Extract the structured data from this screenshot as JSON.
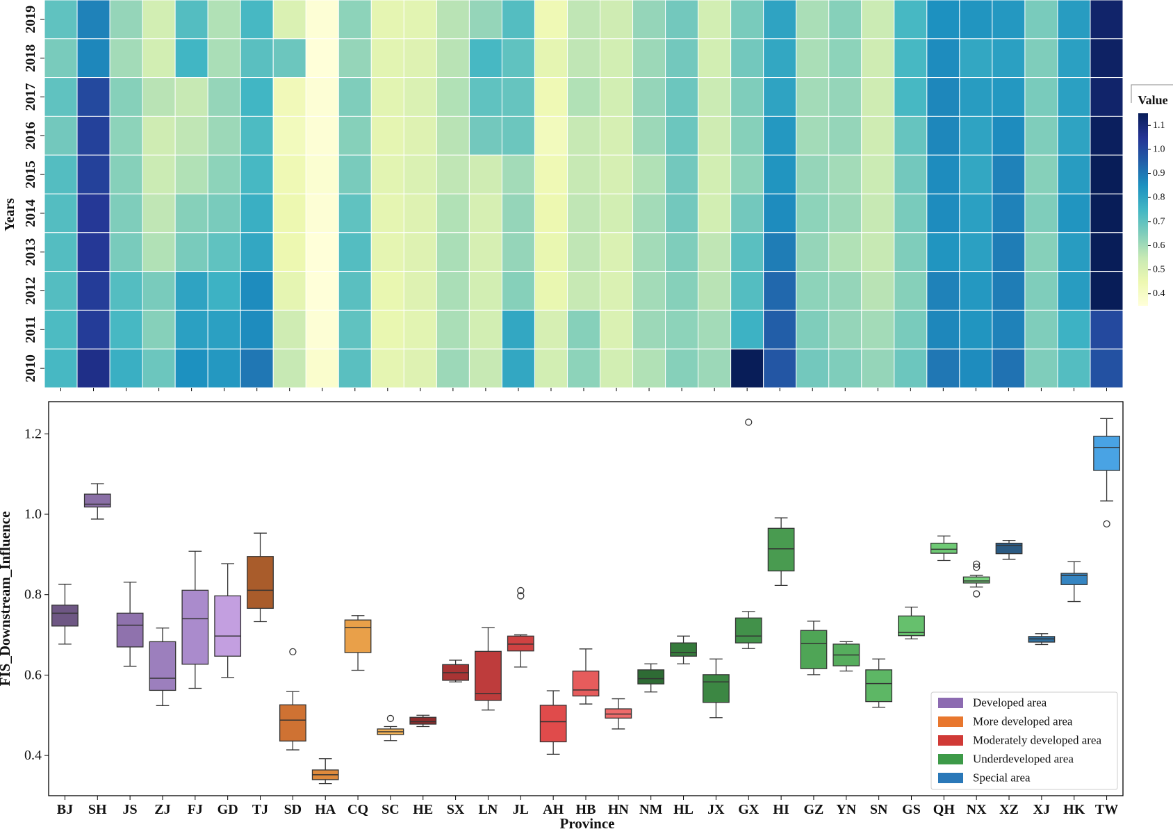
{
  "chart_data": [
    {
      "type": "heatmap",
      "title": "",
      "xlabel": "",
      "ylabel": "Years",
      "x_categories": [
        "BJ",
        "SH",
        "JS",
        "ZJ",
        "FJ",
        "GD",
        "TJ",
        "SD",
        "HA",
        "CQ",
        "SC",
        "HE",
        "SX",
        "LN",
        "JL",
        "AH",
        "HB",
        "HN",
        "NM",
        "HL",
        "JX",
        "GX",
        "HI",
        "GZ",
        "YN",
        "SN",
        "GS",
        "QH",
        "NX",
        "XZ",
        "XJ",
        "HK",
        "TW"
      ],
      "y_categories": [
        "2019",
        "2018",
        "2017",
        "2016",
        "2015",
        "2014",
        "2013",
        "2012",
        "2011",
        "2010"
      ],
      "colorbar": {
        "title": "Value",
        "ticks": [
          "0.4",
          "0.5",
          "0.6",
          "0.7",
          "0.8",
          "0.9",
          "1.0",
          "1.1"
        ],
        "range": [
          0.35,
          1.15
        ],
        "colors": [
          "#ffffd9",
          "#edf8b1",
          "#c7e9b4",
          "#7fcdbb",
          "#41b6c4",
          "#1d91c0",
          "#225ea8",
          "#253494",
          "#081d58"
        ]
      },
      "values": [
        [
          0.7,
          0.88,
          0.62,
          0.52,
          0.72,
          0.58,
          0.74,
          0.5,
          0.36,
          0.63,
          0.47,
          0.48,
          0.57,
          0.62,
          0.72,
          0.44,
          0.56,
          0.53,
          0.62,
          0.67,
          0.52,
          0.66,
          0.8,
          0.59,
          0.64,
          0.54,
          0.74,
          0.85,
          0.84,
          0.83,
          0.66,
          0.82,
          1.12
        ],
        [
          0.66,
          0.87,
          0.6,
          0.52,
          0.75,
          0.59,
          0.71,
          0.68,
          0.35,
          0.62,
          0.48,
          0.49,
          0.57,
          0.74,
          0.7,
          0.47,
          0.56,
          0.52,
          0.61,
          0.67,
          0.52,
          0.67,
          0.79,
          0.59,
          0.63,
          0.53,
          0.74,
          0.86,
          0.79,
          0.81,
          0.65,
          0.81,
          1.13
        ],
        [
          0.7,
          1.0,
          0.64,
          0.57,
          0.55,
          0.62,
          0.75,
          0.43,
          0.36,
          0.65,
          0.48,
          0.5,
          0.58,
          0.7,
          0.69,
          0.44,
          0.58,
          0.52,
          0.62,
          0.68,
          0.54,
          0.65,
          0.8,
          0.6,
          0.62,
          0.53,
          0.74,
          0.87,
          0.82,
          0.83,
          0.66,
          0.81,
          1.12
        ],
        [
          0.67,
          1.02,
          0.63,
          0.53,
          0.56,
          0.61,
          0.73,
          0.42,
          0.36,
          0.64,
          0.47,
          0.49,
          0.57,
          0.67,
          0.68,
          0.42,
          0.55,
          0.51,
          0.61,
          0.68,
          0.53,
          0.64,
          0.83,
          0.6,
          0.62,
          0.53,
          0.69,
          0.87,
          0.8,
          0.86,
          0.65,
          0.8,
          1.14
        ],
        [
          0.72,
          1.02,
          0.64,
          0.54,
          0.58,
          0.63,
          0.74,
          0.44,
          0.37,
          0.66,
          0.48,
          0.5,
          0.56,
          0.53,
          0.6,
          0.44,
          0.55,
          0.51,
          0.58,
          0.67,
          0.52,
          0.63,
          0.84,
          0.62,
          0.6,
          0.54,
          0.67,
          0.86,
          0.79,
          0.88,
          0.64,
          0.82,
          1.16
        ],
        [
          0.72,
          1.04,
          0.65,
          0.56,
          0.64,
          0.66,
          0.77,
          0.45,
          0.36,
          0.7,
          0.47,
          0.49,
          0.58,
          0.51,
          0.62,
          0.45,
          0.56,
          0.52,
          0.6,
          0.67,
          0.52,
          0.67,
          0.86,
          0.63,
          0.61,
          0.55,
          0.66,
          0.86,
          0.81,
          0.88,
          0.65,
          0.84,
          1.16
        ],
        [
          0.72,
          1.04,
          0.66,
          0.58,
          0.66,
          0.7,
          0.79,
          0.45,
          0.35,
          0.72,
          0.47,
          0.49,
          0.59,
          0.51,
          0.62,
          0.46,
          0.56,
          0.5,
          0.6,
          0.65,
          0.56,
          0.71,
          0.89,
          0.62,
          0.58,
          0.55,
          0.65,
          0.84,
          0.81,
          0.89,
          0.64,
          0.82,
          1.19
        ],
        [
          0.72,
          1.03,
          0.72,
          0.66,
          0.8,
          0.76,
          0.86,
          0.47,
          0.35,
          0.71,
          0.46,
          0.49,
          0.59,
          0.52,
          0.64,
          0.46,
          0.55,
          0.5,
          0.6,
          0.64,
          0.57,
          0.72,
          0.93,
          0.63,
          0.62,
          0.57,
          0.64,
          0.88,
          0.83,
          0.89,
          0.65,
          0.82,
          1.2
        ],
        [
          0.73,
          1.03,
          0.74,
          0.64,
          0.81,
          0.81,
          0.86,
          0.53,
          0.36,
          0.7,
          0.46,
          0.48,
          0.59,
          0.52,
          0.79,
          0.51,
          0.64,
          0.5,
          0.61,
          0.63,
          0.6,
          0.76,
          0.95,
          0.65,
          0.62,
          0.6,
          0.66,
          0.87,
          0.84,
          0.88,
          0.65,
          0.76,
          1.0
        ],
        [
          0.74,
          1.07,
          0.77,
          0.68,
          0.85,
          0.83,
          0.9,
          0.55,
          0.38,
          0.71,
          0.47,
          0.49,
          0.61,
          0.55,
          0.79,
          0.52,
          0.63,
          0.52,
          0.58,
          0.64,
          0.61,
          1.23,
          0.97,
          0.67,
          0.65,
          0.62,
          0.68,
          0.9,
          0.86,
          0.91,
          0.65,
          0.72,
          0.98
        ]
      ]
    },
    {
      "type": "box",
      "title": "",
      "xlabel": "Province",
      "ylabel": "FIS_Downstream_Influence",
      "ylim": [
        0.3,
        1.28
      ],
      "yticks": [
        "0.4",
        "0.6",
        "0.8",
        "1.0",
        "1.2"
      ],
      "categories": [
        "BJ",
        "SH",
        "JS",
        "ZJ",
        "FJ",
        "GD",
        "TJ",
        "SD",
        "HA",
        "CQ",
        "SC",
        "HE",
        "SX",
        "LN",
        "JL",
        "AH",
        "HB",
        "HN",
        "NM",
        "HL",
        "JX",
        "GX",
        "HI",
        "GZ",
        "YN",
        "SN",
        "GS",
        "QH",
        "NX",
        "XZ",
        "XJ",
        "HK",
        "TW"
      ],
      "legend": {
        "position": "lower-right",
        "entries": [
          {
            "label": "Developed area",
            "color": "#8c6bb1"
          },
          {
            "label": "More developed area",
            "color": "#e8772e"
          },
          {
            "label": "Moderately developed area",
            "color": "#d03a36"
          },
          {
            "label": "Underdeveloped area",
            "color": "#3d9a48"
          },
          {
            "label": "Special area",
            "color": "#2a78b8"
          }
        ]
      },
      "boxes": [
        {
          "min": 0.677,
          "q1": 0.722,
          "median": 0.754,
          "q3": 0.774,
          "max": 0.826,
          "outliers": [],
          "color": "#6e5784",
          "group": "Developed area"
        },
        {
          "min": 0.988,
          "q1": 1.018,
          "median": 1.025,
          "q3": 1.05,
          "max": 1.076,
          "outliers": [],
          "color": "#8a6fa6",
          "group": "Developed area"
        },
        {
          "min": 0.622,
          "q1": 0.67,
          "median": 0.724,
          "q3": 0.754,
          "max": 0.831,
          "outliers": [],
          "color": "#8f72ad",
          "group": "Developed area"
        },
        {
          "min": 0.524,
          "q1": 0.562,
          "median": 0.592,
          "q3": 0.683,
          "max": 0.717,
          "outliers": [],
          "color": "#9c7fbd",
          "group": "Developed area"
        },
        {
          "min": 0.567,
          "q1": 0.627,
          "median": 0.74,
          "q3": 0.811,
          "max": 0.908,
          "outliers": [],
          "color": "#aa8bcc",
          "group": "Developed area"
        },
        {
          "min": 0.594,
          "q1": 0.647,
          "median": 0.697,
          "q3": 0.797,
          "max": 0.877,
          "outliers": [],
          "color": "#c39fe0",
          "group": "Developed area"
        },
        {
          "min": 0.733,
          "q1": 0.766,
          "median": 0.811,
          "q3": 0.895,
          "max": 0.953,
          "outliers": [],
          "color": "#a95c2b",
          "group": "More developed area"
        },
        {
          "min": 0.414,
          "q1": 0.436,
          "median": 0.488,
          "q3": 0.526,
          "max": 0.559,
          "outliers": [
            0.658
          ],
          "color": "#cf7233",
          "group": "More developed area"
        },
        {
          "min": 0.33,
          "q1": 0.34,
          "median": 0.352,
          "q3": 0.364,
          "max": 0.392,
          "outliers": [],
          "color": "#de8a3c",
          "group": "More developed area"
        },
        {
          "min": 0.612,
          "q1": 0.656,
          "median": 0.718,
          "q3": 0.737,
          "max": 0.748,
          "outliers": [],
          "color": "#e9a049",
          "group": "More developed area"
        },
        {
          "min": 0.437,
          "q1": 0.452,
          "median": 0.459,
          "q3": 0.466,
          "max": 0.472,
          "outliers": [
            0.492
          ],
          "color": "#f2b257",
          "group": "More developed area"
        },
        {
          "min": 0.472,
          "q1": 0.478,
          "median": 0.484,
          "q3": 0.495,
          "max": 0.5,
          "outliers": [],
          "color": "#8e2c2c",
          "group": "Moderately developed area"
        },
        {
          "min": 0.583,
          "q1": 0.587,
          "median": 0.606,
          "q3": 0.626,
          "max": 0.637,
          "outliers": [],
          "color": "#a93434",
          "group": "Moderately developed area"
        },
        {
          "min": 0.513,
          "q1": 0.537,
          "median": 0.554,
          "q3": 0.659,
          "max": 0.718,
          "outliers": [],
          "color": "#be3c3c",
          "group": "Moderately developed area"
        },
        {
          "min": 0.62,
          "q1": 0.66,
          "median": 0.677,
          "q3": 0.697,
          "max": 0.7,
          "outliers": [
            0.797,
            0.81
          ],
          "color": "#cf4242",
          "group": "Moderately developed area"
        },
        {
          "min": 0.403,
          "q1": 0.434,
          "median": 0.484,
          "q3": 0.525,
          "max": 0.561,
          "outliers": [],
          "color": "#e04b4b",
          "group": "Moderately developed area"
        },
        {
          "min": 0.528,
          "q1": 0.548,
          "median": 0.563,
          "q3": 0.61,
          "max": 0.665,
          "outliers": [],
          "color": "#e65c5c",
          "group": "Moderately developed area"
        },
        {
          "min": 0.466,
          "q1": 0.493,
          "median": 0.503,
          "q3": 0.516,
          "max": 0.541,
          "outliers": [],
          "color": "#ee6a6a",
          "group": "Moderately developed area"
        },
        {
          "min": 0.558,
          "q1": 0.578,
          "median": 0.591,
          "q3": 0.613,
          "max": 0.628,
          "outliers": [],
          "color": "#2e6b34",
          "group": "Underdeveloped area"
        },
        {
          "min": 0.628,
          "q1": 0.647,
          "median": 0.656,
          "q3": 0.68,
          "max": 0.697,
          "outliers": [],
          "color": "#357a3b",
          "group": "Underdeveloped area"
        },
        {
          "min": 0.494,
          "q1": 0.532,
          "median": 0.583,
          "q3": 0.601,
          "max": 0.64,
          "outliers": [],
          "color": "#3c8743",
          "group": "Underdeveloped area"
        },
        {
          "min": 0.666,
          "q1": 0.68,
          "median": 0.697,
          "q3": 0.742,
          "max": 0.758,
          "outliers": [
            1.229
          ],
          "color": "#42914a",
          "group": "Underdeveloped area"
        },
        {
          "min": 0.823,
          "q1": 0.859,
          "median": 0.914,
          "q3": 0.965,
          "max": 0.991,
          "outliers": [],
          "color": "#499b50",
          "group": "Underdeveloped area"
        },
        {
          "min": 0.601,
          "q1": 0.616,
          "median": 0.679,
          "q3": 0.711,
          "max": 0.734,
          "outliers": [],
          "color": "#4fa556",
          "group": "Underdeveloped area"
        },
        {
          "min": 0.61,
          "q1": 0.623,
          "median": 0.65,
          "q3": 0.677,
          "max": 0.683,
          "outliers": [],
          "color": "#56ad5d",
          "group": "Underdeveloped area"
        },
        {
          "min": 0.52,
          "q1": 0.534,
          "median": 0.579,
          "q3": 0.613,
          "max": 0.64,
          "outliers": [],
          "color": "#5db765",
          "group": "Underdeveloped area"
        },
        {
          "min": 0.69,
          "q1": 0.698,
          "median": 0.706,
          "q3": 0.747,
          "max": 0.769,
          "outliers": [],
          "color": "#66c06d",
          "group": "Underdeveloped area"
        },
        {
          "min": 0.885,
          "q1": 0.903,
          "median": 0.913,
          "q3": 0.928,
          "max": 0.946,
          "outliers": [],
          "color": "#6fca75",
          "group": "Underdeveloped area"
        },
        {
          "min": 0.819,
          "q1": 0.829,
          "median": 0.834,
          "q3": 0.844,
          "max": 0.848,
          "outliers": [
            0.802,
            0.868,
            0.876
          ],
          "color": "#78d27d",
          "group": "Underdeveloped area"
        },
        {
          "min": 0.888,
          "q1": 0.902,
          "median": 0.922,
          "q3": 0.928,
          "max": 0.935,
          "outliers": [],
          "color": "#2b5a82",
          "group": "Special area"
        },
        {
          "min": 0.676,
          "q1": 0.682,
          "median": 0.69,
          "q3": 0.696,
          "max": 0.703,
          "outliers": [],
          "color": "#2f6f9e",
          "group": "Special area"
        },
        {
          "min": 0.783,
          "q1": 0.825,
          "median": 0.848,
          "q3": 0.853,
          "max": 0.882,
          "outliers": [],
          "color": "#3585c2",
          "group": "Special area"
        },
        {
          "min": 1.033,
          "q1": 1.109,
          "median": 1.166,
          "q3": 1.194,
          "max": 1.238,
          "outliers": [
            0.976
          ],
          "color": "#49a3e4",
          "group": "Special area"
        }
      ]
    }
  ]
}
